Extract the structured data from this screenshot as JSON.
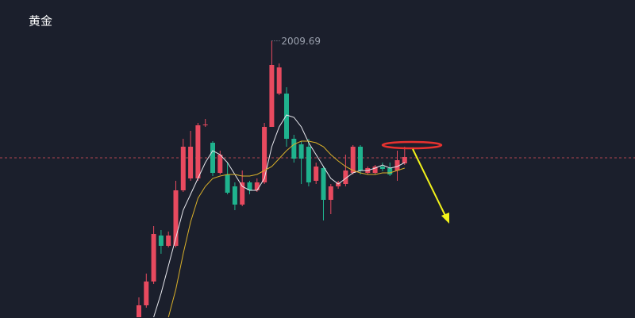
{
  "chart_data": {
    "type": "candlestick",
    "title": "黄金",
    "up_color": "#e84a5f",
    "down_color": "#1fb38e",
    "ylim": [
      1940,
      2020
    ],
    "price_line": 1980.2,
    "price_line_color": "#b0454f",
    "open": [
      1940,
      1943,
      1949,
      1960.6,
      1958,
      1958,
      1972,
      1975,
      1975,
      1988.4,
      1984,
      1976.4,
      1976,
      1973,
      1968.4,
      1974,
      1972,
      1974,
      1988,
      1996.4,
      1996.4,
      1985,
      1983.6,
      1983,
      1974.4,
      1977.6,
      1969.6,
      1973,
      1973.6,
      1976.4,
      1983,
      1976.4,
      1976.4,
      1978,
      1977.6,
      1977,
      1978.8
    ],
    "high": [
      1945,
      1951,
      1963,
      1962,
      1961.6,
      1974.4,
      1985,
      1987,
      1989,
      1990,
      1984.4,
      1982,
      1979,
      1974,
      1977,
      1974.4,
      1975,
      1989,
      2009.69,
      2004,
      1998,
      1986,
      1984.4,
      1985,
      1979,
      1978,
      1973.6,
      1974.4,
      1981,
      1983.4,
      1983.4,
      1978,
      1978.4,
      1979,
      1979,
      1982,
      1983
    ],
    "low": [
      1940,
      1942.4,
      1948.4,
      1956,
      1957.6,
      1957.6,
      1971.6,
      1974.4,
      1974.4,
      1988,
      1975.6,
      1976,
      1971,
      1967,
      1968,
      1971,
      1971.6,
      1973.6,
      1988,
      1996,
      1983,
      1979,
      1973.6,
      1973,
      1973.6,
      1964.4,
      1966,
      1972.4,
      1973,
      1976,
      1976,
      1976,
      1976,
      1976.8,
      1975.6,
      1974.4,
      1978.4
    ],
    "close": [
      1943,
      1949,
      1961,
      1958,
      1960.6,
      1972,
      1983,
      1983,
      1988.4,
      1988.6,
      1976.4,
      1981,
      1971.4,
      1968.4,
      1974,
      1972,
      1974,
      1988,
      2003.6,
      2003,
      1985,
      1980,
      1980,
      1974,
      1978,
      1969.6,
      1973,
      1974,
      1977,
      1983,
      1977,
      1977.6,
      1978,
      1977.4,
      1976,
      1979.6,
      1980.4
    ],
    "ma_lines": [
      {
        "color": "#e8e8ee",
        "values": [
          null,
          null,
          1940,
          1946,
          1953,
          1960,
          1967,
          1971,
          1975,
          1979,
          1982,
          1981,
          1979,
          1976,
          1973,
          1972,
          1972,
          1975,
          1983,
          1988,
          1991,
          1990.4,
          1988,
          1984,
          1981,
          1978,
          1975,
          1973.6,
          1975,
          1976.4,
          1977,
          1977,
          1977.6,
          1978.4,
          1977.6,
          1978,
          1979
        ]
      },
      {
        "color": "#d9b02a",
        "values": [
          null,
          null,
          null,
          null,
          1940,
          1947,
          1956,
          1964,
          1970,
          1973,
          1975,
          1975.6,
          1976,
          1976,
          1975.6,
          1975.6,
          1976,
          1977,
          1978,
          1980,
          1982,
          1983.6,
          1984.4,
          1984.4,
          1984,
          1983,
          1981,
          1979.4,
          1978,
          1977,
          1976.4,
          1976,
          1976,
          1976.4,
          1976.4,
          1977,
          1977.6
        ]
      }
    ]
  }
}
